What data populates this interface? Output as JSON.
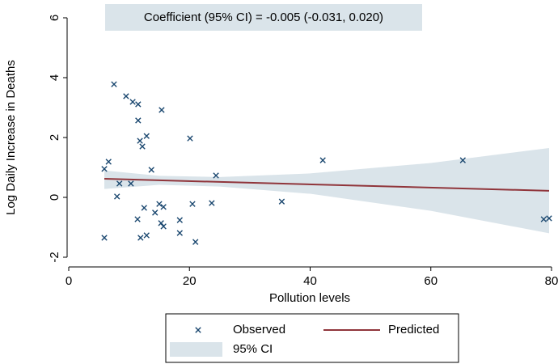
{
  "chart_data": {
    "type": "scatter",
    "annotation": "Coefficient (95% CI) = -0.005 (-0.031, 0.020)",
    "xlabel": "Pollution levels",
    "ylabel": "Log Daily Increase in Deaths",
    "xlim": [
      0,
      80
    ],
    "xticks": [
      0,
      20,
      40,
      60,
      80
    ],
    "ylim": [
      -2,
      6
    ],
    "yticks": [
      -2,
      0,
      2,
      4,
      6
    ],
    "series": [
      {
        "name": "Observed",
        "type": "scatter",
        "color": "#1a476f",
        "x": [
          5.9,
          5.9,
          6.6,
          7.5,
          8.0,
          8.4,
          9.5,
          10.3,
          10.6,
          11.5,
          11.5,
          11.4,
          11.8,
          11.9,
          12.2,
          12.5,
          12.9,
          12.9,
          13.7,
          14.3,
          15.0,
          15.3,
          15.4,
          15.7,
          15.7,
          18.4,
          18.4,
          20.1,
          20.5,
          21.0,
          23.7,
          24.4,
          35.3,
          42.1,
          65.3,
          78.7,
          79.6
        ],
        "values": [
          -1.35,
          0.95,
          1.19,
          3.78,
          0.03,
          0.46,
          3.38,
          0.46,
          3.19,
          3.11,
          2.57,
          -0.73,
          1.89,
          -1.35,
          1.7,
          -0.35,
          2.05,
          -1.27,
          0.92,
          -0.51,
          -0.22,
          -0.86,
          2.92,
          -0.32,
          -0.97,
          -0.76,
          -1.19,
          1.97,
          -0.22,
          -1.49,
          -0.19,
          0.73,
          -0.14,
          1.24,
          1.24,
          -0.73,
          -0.7
        ]
      },
      {
        "name": "Predicted",
        "type": "line",
        "color": "#90353b",
        "x": [
          5.9,
          79.6
        ],
        "values": [
          0.62,
          0.22
        ]
      },
      {
        "name": "95% CI",
        "type": "area",
        "color": "#dae4ea",
        "x": [
          5.9,
          15,
          25,
          40,
          60,
          79.6
        ],
        "lower": [
          0.28,
          0.42,
          0.36,
          0.12,
          -0.45,
          -1.2
        ],
        "upper": [
          0.9,
          0.72,
          0.68,
          0.8,
          1.15,
          1.65
        ]
      }
    ]
  }
}
